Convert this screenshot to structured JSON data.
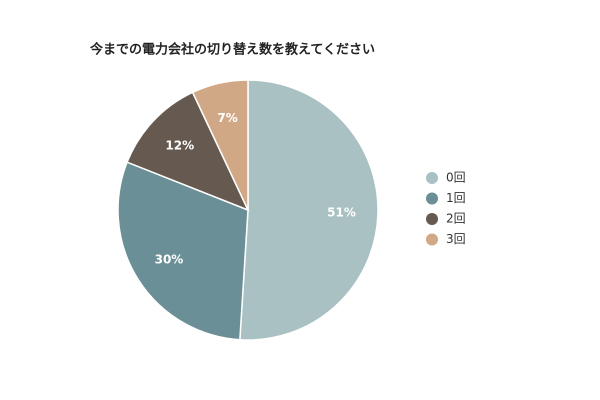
{
  "chart_data": {
    "type": "pie",
    "title": "今までの電力会社の切り替え数を教えてください",
    "categories": [
      "0回",
      "1回",
      "2回",
      "3回"
    ],
    "values": [
      51,
      30,
      12,
      7
    ],
    "value_labels": [
      "51%",
      "30%",
      "12%",
      "7%"
    ],
    "colors": [
      "#a9c1c3",
      "#6b8f96",
      "#665a50",
      "#d1a886"
    ],
    "legend": "right"
  }
}
